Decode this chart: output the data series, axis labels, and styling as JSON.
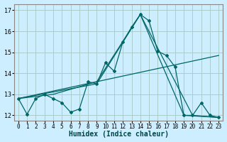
{
  "xlabel": "Humidex (Indice chaleur)",
  "background_color": "#cceeff",
  "grid_color": "#aacccc",
  "line_color": "#006666",
  "xlim": [
    -0.5,
    23.5
  ],
  "ylim": [
    11.75,
    17.3
  ],
  "yticks": [
    12,
    13,
    14,
    15,
    16,
    17
  ],
  "xticks": [
    0,
    1,
    2,
    3,
    4,
    5,
    6,
    7,
    8,
    9,
    10,
    11,
    12,
    13,
    14,
    15,
    16,
    17,
    18,
    19,
    20,
    21,
    22,
    23
  ],
  "series": [
    {
      "x": [
        0,
        1,
        2,
        3,
        4,
        5,
        6,
        7,
        8,
        9,
        10,
        11,
        12,
        13,
        14,
        15,
        16,
        17,
        18,
        19,
        20,
        21,
        22,
        23
      ],
      "y": [
        12.8,
        12.05,
        12.8,
        13.0,
        12.8,
        12.6,
        12.15,
        12.3,
        13.6,
        13.5,
        14.5,
        14.1,
        15.5,
        16.2,
        16.8,
        16.5,
        15.05,
        14.85,
        14.3,
        12.0,
        12.0,
        12.6,
        12.0,
        11.9
      ],
      "markers": true
    },
    {
      "x": [
        0,
        4,
        9,
        14,
        20,
        23
      ],
      "y": [
        12.8,
        13.0,
        13.6,
        16.8,
        12.0,
        11.9
      ],
      "markers": false
    },
    {
      "x": [
        0,
        9,
        14,
        19,
        23
      ],
      "y": [
        12.8,
        13.5,
        16.8,
        12.0,
        11.9
      ],
      "markers": false
    },
    {
      "x": [
        0,
        23
      ],
      "y": [
        12.8,
        14.85
      ],
      "markers": false
    }
  ]
}
